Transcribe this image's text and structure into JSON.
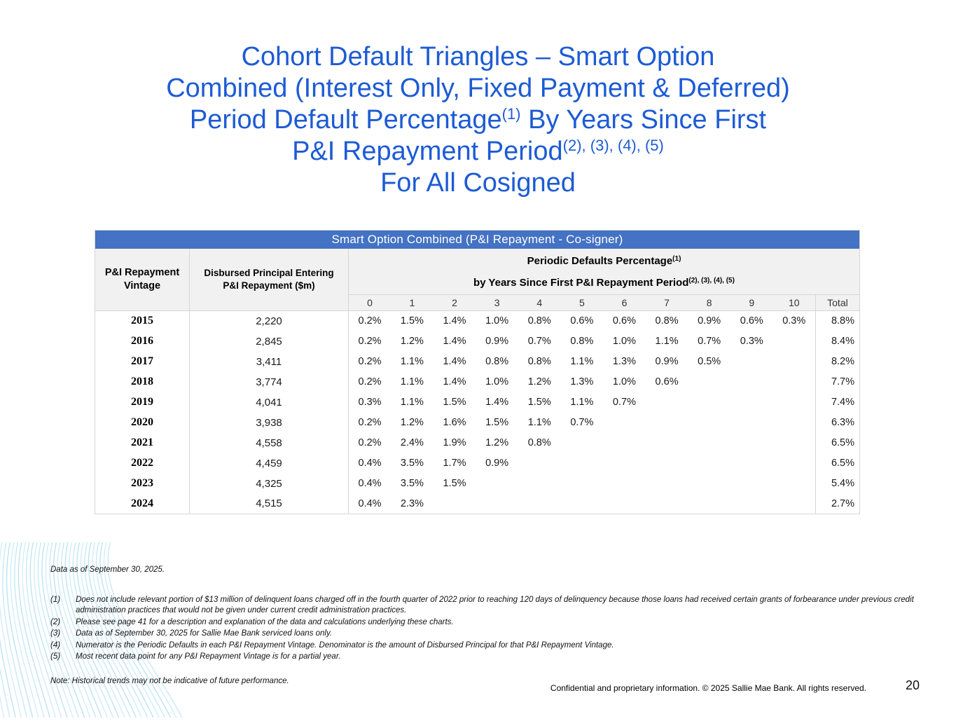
{
  "colors": {
    "title_blue": "#1d5bd4",
    "banner_blue": "#4472C4",
    "header_gray": "#f1f1f1",
    "wave_blue": "#b5e1f2"
  },
  "title": {
    "line1": "Cohort Default Triangles – Smart Option",
    "line2": "Combined (Interest Only, Fixed Payment & Deferred)",
    "line3_pre": "Period Default Percentage",
    "line3_sup": "(1)",
    "line3_post": " By Years Since First",
    "line4_pre": "P&I Repayment Period",
    "line4_sup": "(2), (3), (4), (5)",
    "line5": "For All Cosigned"
  },
  "table": {
    "banner": "Smart Option Combined (P&I Repayment - Co-signer)",
    "col1_header": "P&I Repayment Vintage",
    "col2_header_line1": "Disbursed Principal Entering",
    "col2_header_line2": "P&I Repayment ($m)",
    "periodic_header_pre": "Periodic Defaults Percentage",
    "periodic_header_sup": "(1)",
    "periodic_subheader_pre": "by Years Since First P&I Repayment Period",
    "periodic_subheader_sup": "(2), (3), (4), (5)",
    "year_columns": [
      "0",
      "1",
      "2",
      "3",
      "4",
      "5",
      "6",
      "7",
      "8",
      "9",
      "10"
    ],
    "total_header": "Total",
    "rows": [
      {
        "vintage": "2015",
        "disbursed": "2,220",
        "values": [
          "0.2%",
          "1.5%",
          "1.4%",
          "1.0%",
          "0.8%",
          "0.6%",
          "0.6%",
          "0.8%",
          "0.9%",
          "0.6%",
          "0.3%"
        ],
        "total": "8.8%"
      },
      {
        "vintage": "2016",
        "disbursed": "2,845",
        "values": [
          "0.2%",
          "1.2%",
          "1.4%",
          "0.9%",
          "0.7%",
          "0.8%",
          "1.0%",
          "1.1%",
          "0.7%",
          "0.3%"
        ],
        "total": "8.4%"
      },
      {
        "vintage": "2017",
        "disbursed": "3,411",
        "values": [
          "0.2%",
          "1.1%",
          "1.4%",
          "0.8%",
          "0.8%",
          "1.1%",
          "1.3%",
          "0.9%",
          "0.5%"
        ],
        "total": "8.2%"
      },
      {
        "vintage": "2018",
        "disbursed": "3,774",
        "values": [
          "0.2%",
          "1.1%",
          "1.4%",
          "1.0%",
          "1.2%",
          "1.3%",
          "1.0%",
          "0.6%"
        ],
        "total": "7.7%"
      },
      {
        "vintage": "2019",
        "disbursed": "4,041",
        "values": [
          "0.3%",
          "1.1%",
          "1.5%",
          "1.4%",
          "1.5%",
          "1.1%",
          "0.7%"
        ],
        "total": "7.4%"
      },
      {
        "vintage": "2020",
        "disbursed": "3,938",
        "values": [
          "0.2%",
          "1.2%",
          "1.6%",
          "1.5%",
          "1.1%",
          "0.7%"
        ],
        "total": "6.3%"
      },
      {
        "vintage": "2021",
        "disbursed": "4,558",
        "values": [
          "0.2%",
          "2.4%",
          "1.9%",
          "1.2%",
          "0.8%"
        ],
        "total": "6.5%"
      },
      {
        "vintage": "2022",
        "disbursed": "4,459",
        "values": [
          "0.4%",
          "3.5%",
          "1.7%",
          "0.9%"
        ],
        "total": "6.5%"
      },
      {
        "vintage": "2023",
        "disbursed": "4,325",
        "values": [
          "0.4%",
          "3.5%",
          "1.5%"
        ],
        "total": "5.4%"
      },
      {
        "vintage": "2024",
        "disbursed": "4,515",
        "values": [
          "0.4%",
          "2.3%"
        ],
        "total": "2.7%"
      }
    ]
  },
  "footnotes": {
    "data_as_of": "Data as of September 30, 2025.",
    "items": [
      {
        "num": "(1)",
        "text": "Does not include relevant portion of $13 million of delinquent loans charged off in the fourth quarter of 2022 prior to reaching 120 days of delinquency because those loans had received certain grants of forbearance under previous credit administration practices that would not be given under current credit administration practices."
      },
      {
        "num": "(2)",
        "text": "Please see page 41 for a description and explanation of the data and calculations underlying these charts."
      },
      {
        "num": "(3)",
        "text": "Data as of September 30, 2025 for Sallie Mae Bank serviced loans only."
      },
      {
        "num": "(4)",
        "text": "Numerator is the Periodic Defaults in each P&I Repayment Vintage. Denominator is the amount of Disbursed Principal for that P&I Repayment Vintage."
      },
      {
        "num": "(5)",
        "text": "Most recent data point for any P&I Repayment Vintage is for a partial year."
      }
    ],
    "note": "Note: Historical trends may not be indicative of future performance."
  },
  "footer": {
    "confidential": "Confidential and proprietary information. © 2025 Sallie Mae Bank. All rights reserved.",
    "page_number": "20"
  }
}
